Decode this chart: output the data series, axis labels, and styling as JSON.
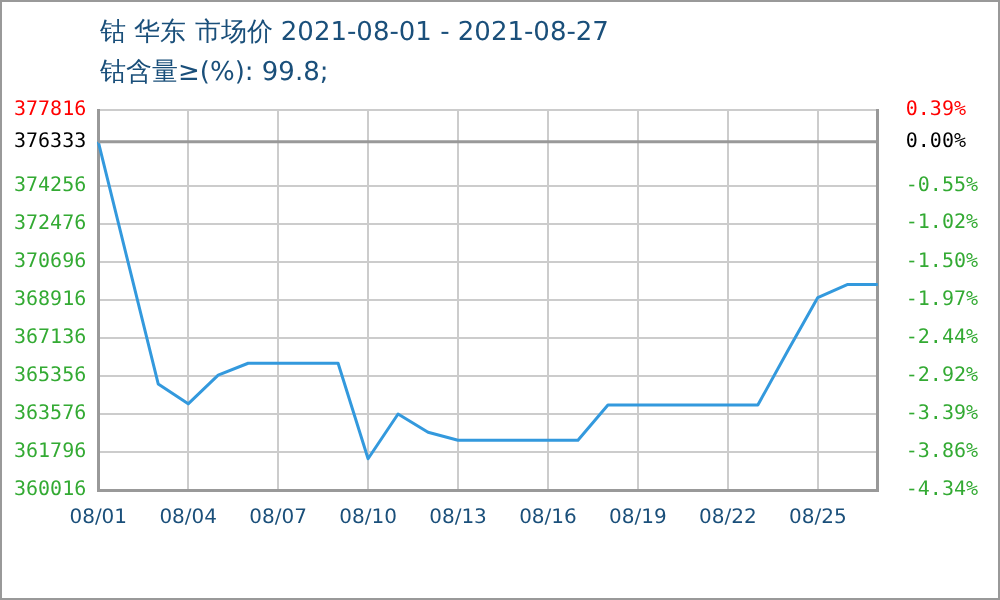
{
  "chart_data": {
    "type": "line",
    "title": "钴 华东 市场价 2021-08-01 - 2021-08-27",
    "subtitle": "钴含量≥(%): 99.8;",
    "categories": [
      "08/01",
      null,
      null,
      "08/04",
      null,
      null,
      "08/07",
      null,
      null,
      "08/10",
      null,
      null,
      "08/13",
      null,
      null,
      "08/16",
      null,
      null,
      "08/19",
      null,
      null,
      "08/22",
      null,
      null,
      "08/25",
      null,
      null
    ],
    "series": [
      {
        "color": "#3399dd",
        "values": [
          376333,
          null,
          364984,
          364052,
          365400,
          365953,
          null,
          null,
          365953,
          361479,
          363576,
          362719,
          362346,
          null,
          null,
          362346,
          362346,
          363996,
          363996,
          363996,
          null,
          null,
          363996,
          366540,
          369028,
          369644,
          369644
        ]
      }
    ],
    "ylim": [
      360016,
      377816
    ],
    "yticks": [
      360016,
      361796,
      363576,
      365356,
      367136,
      368916,
      370696,
      372476,
      374256,
      376333,
      377816
    ],
    "y2lim": [
      -4.34,
      0.39
    ],
    "y2ticks": [
      {
        "value": -4.34,
        "label": "-4.34%"
      },
      {
        "value": -3.86,
        "label": "-3.86%"
      },
      {
        "value": -3.39,
        "label": "-3.39%"
      },
      {
        "value": -2.92,
        "label": "-2.92%"
      },
      {
        "value": -2.44,
        "label": "-2.44%"
      },
      {
        "value": -1.97,
        "label": "-1.97%"
      },
      {
        "value": -1.5,
        "label": "-1.50%"
      },
      {
        "value": -1.02,
        "label": "-1.02%"
      },
      {
        "value": -0.55,
        "label": "-0.55%"
      },
      {
        "value": 0,
        "label": "0.00%"
      },
      {
        "value": 0.39,
        "label": "0.39%"
      }
    ],
    "ref_lines": [
      {
        "axis": "y",
        "value": 376333,
        "color": "#999999"
      }
    ],
    "grid": true,
    "legend": false,
    "marker": "none",
    "line_style": "solid"
  }
}
